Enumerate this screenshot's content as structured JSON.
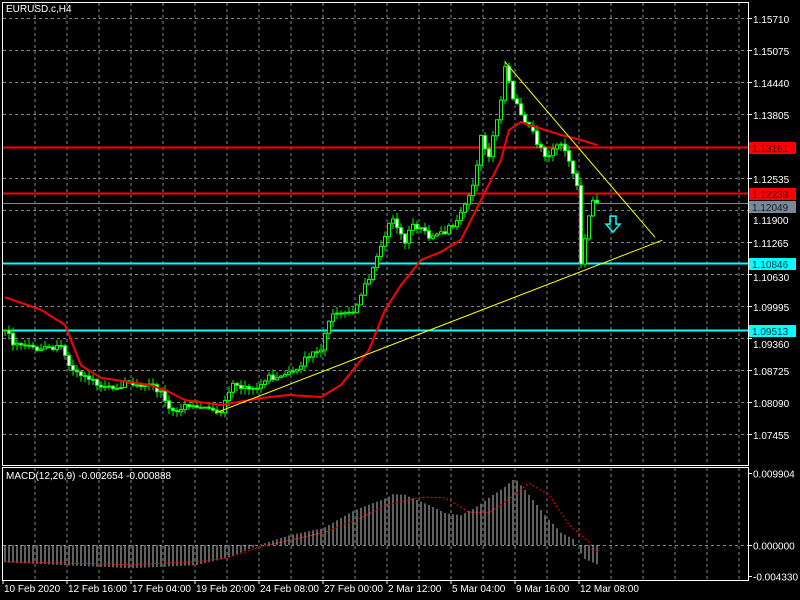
{
  "window": {
    "title": "EURUSD.c,H4"
  },
  "chart_data": {
    "type": "candlestick",
    "title": "EURUSD.c,H4",
    "symbol": "EURUSD.c",
    "timeframe": "H4",
    "grid": true,
    "ylim": [
      1.0684,
      1.1601
    ],
    "y_ticks": [
      "1.15710",
      "1.15075",
      "1.14440",
      "1.13805",
      "1.12535",
      "1.11900",
      "1.11265",
      "1.10630",
      "1.09995",
      "1.09360",
      "1.08725",
      "1.08090",
      "1.07455"
    ],
    "x_ticks": [
      {
        "bar": 0,
        "label": "10 Feb 2020"
      },
      {
        "bar": 16,
        "label": "12 Feb 16:00"
      },
      {
        "bar": 32,
        "label": "17 Feb 04:00"
      },
      {
        "bar": 48,
        "label": "19 Feb 20:00"
      },
      {
        "bar": 64,
        "label": "24 Feb 08:00"
      },
      {
        "bar": 80,
        "label": "27 Feb 00:00"
      },
      {
        "bar": 96,
        "label": "2 Mar 12:00"
      },
      {
        "bar": 112,
        "label": "5 Mar 04:00"
      },
      {
        "bar": 128,
        "label": "9 Mar 16:00"
      },
      {
        "bar": 144,
        "label": "12 Mar 08:00"
      }
    ],
    "bar_count": 149,
    "close_anchors": [
      [
        0,
        1.0952
      ],
      [
        2,
        1.0922
      ],
      [
        6,
        1.0916
      ],
      [
        14,
        1.0922
      ],
      [
        16,
        1.0873
      ],
      [
        21,
        1.0849
      ],
      [
        29,
        1.0843
      ],
      [
        39,
        1.0833
      ],
      [
        41,
        1.0797
      ],
      [
        49,
        1.0797
      ],
      [
        54,
        1.0793
      ],
      [
        57,
        1.0853
      ],
      [
        62,
        1.0829
      ],
      [
        66,
        1.0857
      ],
      [
        71,
        1.0873
      ],
      [
        79,
        1.0912
      ],
      [
        82,
        1.0992
      ],
      [
        87,
        1.0992
      ],
      [
        91,
        1.1051
      ],
      [
        95,
        1.1131
      ],
      [
        97,
        1.118
      ],
      [
        100,
        1.1131
      ],
      [
        102,
        1.117
      ],
      [
        106,
        1.1131
      ],
      [
        110,
        1.1141
      ],
      [
        114,
        1.119
      ],
      [
        117,
        1.124
      ],
      [
        119,
        1.1329
      ],
      [
        121,
        1.1289
      ],
      [
        124,
        1.1408
      ],
      [
        125,
        1.1468
      ],
      [
        127,
        1.1418
      ],
      [
        130,
        1.1369
      ],
      [
        132,
        1.1349
      ],
      [
        135,
        1.1289
      ],
      [
        139,
        1.1319
      ],
      [
        141,
        1.1289
      ],
      [
        143,
        1.124
      ],
      [
        144,
        1.1091
      ],
      [
        146,
        1.118
      ],
      [
        147,
        1.121
      ],
      [
        148,
        1.12049
      ]
    ],
    "moving_average": {
      "color": "#ff0000",
      "anchors": [
        [
          0,
          1.1017
        ],
        [
          9,
          1.0992
        ],
        [
          15,
          1.0962
        ],
        [
          19,
          1.0882
        ],
        [
          24,
          1.0857
        ],
        [
          36,
          1.0843
        ],
        [
          40,
          1.0833
        ],
        [
          45,
          1.0813
        ],
        [
          54,
          1.0803
        ],
        [
          64,
          1.0817
        ],
        [
          71,
          1.0823
        ],
        [
          79,
          1.0819
        ],
        [
          84,
          1.0843
        ],
        [
          91,
          1.0912
        ],
        [
          95,
          1.0992
        ],
        [
          99,
          1.1041
        ],
        [
          104,
          1.1091
        ],
        [
          109,
          1.1107
        ],
        [
          114,
          1.1131
        ],
        [
          119,
          1.121
        ],
        [
          124,
          1.1289
        ],
        [
          126,
          1.1349
        ],
        [
          129,
          1.1365
        ],
        [
          131,
          1.1359
        ],
        [
          139,
          1.1339
        ],
        [
          144,
          1.1329
        ],
        [
          148,
          1.1319
        ]
      ]
    },
    "levels": [
      {
        "price": "1.13161",
        "color": "#ff0000",
        "text_color": "#3a0000"
      },
      {
        "price": "1.12239",
        "color": "#ff0000",
        "text_color": "#3a0000"
      },
      {
        "price": "1.12049",
        "color": "#778899",
        "text_color": "#1a1a1a"
      },
      {
        "price": "1.10846",
        "color": "#00ffff",
        "text_color": "#003333"
      },
      {
        "price": "1.09513",
        "color": "#00ffff",
        "text_color": "#003333"
      }
    ],
    "trendlines": [
      {
        "color": "#ffff00",
        "from": [
          125,
          1.1484
        ],
        "to": [
          162.5,
          1.1136
        ]
      },
      {
        "color": "#ffff00",
        "from": [
          52.5,
          1.0787
        ],
        "to": [
          164.25,
          1.113
        ]
      }
    ],
    "arrow": {
      "bar": 152,
      "price": 1.116,
      "direction": "down",
      "color": "#00ffff"
    },
    "macd": {
      "label": "MACD(12,26,9) -0.002654 -0.000888",
      "ylim": [
        -0.00482,
        0.0106
      ],
      "y_ticks": [
        "0.009904",
        "0.000000",
        "-0.004330"
      ],
      "histogram_anchors": [
        [
          0,
          -0.0024
        ],
        [
          15.5,
          -0.0028
        ],
        [
          31.5,
          -0.0032
        ],
        [
          47.5,
          -0.0028
        ],
        [
          55.5,
          -0.0018
        ],
        [
          63.5,
          0.0
        ],
        [
          71.5,
          0.0014
        ],
        [
          79.5,
          0.0023
        ],
        [
          87.5,
          0.0048
        ],
        [
          95.5,
          0.0065
        ],
        [
          97,
          0.007
        ],
        [
          100,
          0.0069
        ],
        [
          106,
          0.0055
        ],
        [
          110,
          0.0044
        ],
        [
          114,
          0.0041
        ],
        [
          117.5,
          0.0051
        ],
        [
          121,
          0.0065
        ],
        [
          125,
          0.008
        ],
        [
          127.5,
          0.0092
        ],
        [
          131,
          0.0069
        ],
        [
          135,
          0.0041
        ],
        [
          139,
          0.0017
        ],
        [
          142.5,
          0.0007
        ],
        [
          144.5,
          -0.0018
        ],
        [
          148,
          -0.002654
        ]
      ],
      "signal_anchors": [
        [
          0,
          -0.0023
        ],
        [
          31.5,
          -0.0027
        ],
        [
          47.5,
          -0.0023
        ],
        [
          55.5,
          -0.0018
        ],
        [
          63.5,
          -0.0003
        ],
        [
          71.5,
          0.0007
        ],
        [
          79.5,
          0.0017
        ],
        [
          87.5,
          0.0034
        ],
        [
          95.5,
          0.0055
        ],
        [
          104,
          0.0066
        ],
        [
          110,
          0.0065
        ],
        [
          116,
          0.0045
        ],
        [
          121,
          0.0045
        ],
        [
          125,
          0.0059
        ],
        [
          131,
          0.0085
        ],
        [
          136,
          0.0069
        ],
        [
          141,
          0.0028
        ],
        [
          146,
          0.0004
        ],
        [
          148,
          -0.000888
        ]
      ]
    }
  }
}
